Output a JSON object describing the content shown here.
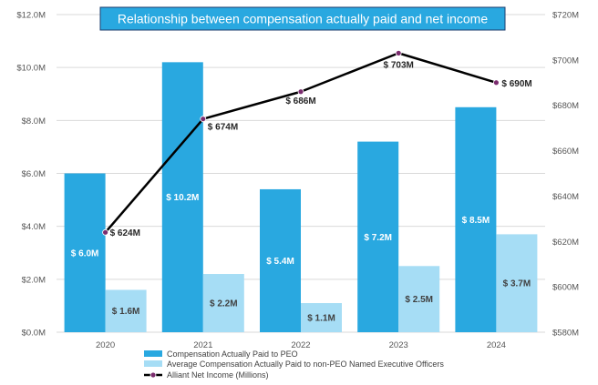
{
  "colors": {
    "peo": "#29A8E0",
    "non_peo": "#A6DDF5",
    "line": "#000000",
    "marker_fill": "#7B2C6E",
    "title_bg": "#29A8E0",
    "title_border": "#1B3D6E",
    "grid": "#D9D9D9"
  },
  "chart_data": {
    "type": "bar",
    "title": "Relationship between compensation actually paid and net income",
    "categories": [
      "2020",
      "2021",
      "2022",
      "2023",
      "2024"
    ],
    "left_axis": {
      "min": 0,
      "max": 12,
      "ticks": [
        "$0.0M",
        "$2.0M",
        "$4.0M",
        "$6.0M",
        "$8.0M",
        "$10.0M",
        "$12.0M"
      ]
    },
    "right_axis": {
      "min": 580,
      "max": 720,
      "ticks": [
        "$580M",
        "$600M",
        "$620M",
        "$640M",
        "$660M",
        "$680M",
        "$700M",
        "$720M"
      ]
    },
    "grid": true,
    "legend_position": "bottom",
    "series": [
      {
        "name": "Compensation Actually Paid to PEO",
        "type": "bar",
        "axis": "left",
        "values": [
          6.0,
          10.2,
          5.4,
          7.2,
          8.5
        ],
        "labels": [
          "$ 6.0M",
          "$ 10.2M",
          "$ 5.4M",
          "$ 7.2M",
          "$ 8.5M"
        ]
      },
      {
        "name": "Average Compensation Actually Paid to non-PEO Named Executive Officers",
        "type": "bar",
        "axis": "left",
        "values": [
          1.6,
          2.2,
          1.1,
          2.5,
          3.7
        ],
        "labels": [
          "$ 1.6M",
          "$ 2.2M",
          "$ 1.1M",
          "$ 2.5M",
          "$ 3.7M"
        ]
      },
      {
        "name": "Alliant Net Income (Millions)",
        "type": "line",
        "axis": "right",
        "values": [
          624,
          674,
          686,
          703,
          690
        ],
        "labels": [
          "$ 624M",
          "$ 674M",
          "$ 686M",
          "$ 703M",
          "$ 690M"
        ]
      }
    ]
  }
}
